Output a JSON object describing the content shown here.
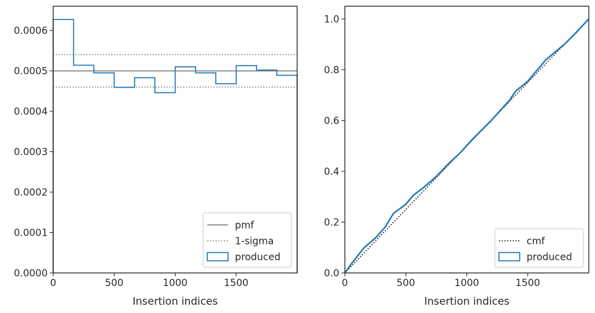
{
  "chart_data": [
    {
      "type": "histogram",
      "xlabel": "Insertion indices",
      "ylabel": "",
      "xlim": [
        0,
        2000
      ],
      "ylim": [
        0,
        0.00066
      ],
      "xticks": [
        0,
        500,
        1000,
        1500
      ],
      "yticks": [
        0,
        0.0001,
        0.0002,
        0.0003,
        0.0004,
        0.0005,
        0.0006
      ],
      "xtick_labels": [
        "0",
        "500",
        "1000",
        "1500"
      ],
      "ytick_labels": [
        "0.0000",
        "0.0001",
        "0.0002",
        "0.0003",
        "0.0004",
        "0.0005",
        "0.0006"
      ],
      "grid": false,
      "legend_position": "bottom-right",
      "legend": [
        "pmf",
        "1-sigma",
        "produced"
      ],
      "pmf": 0.0005,
      "sigma_band": [
        0.00046,
        0.00054
      ],
      "produced": {
        "bin_edges": [
          0,
          167,
          333,
          500,
          667,
          833,
          1000,
          1167,
          1333,
          1500,
          1667,
          1833,
          2000
        ],
        "values": [
          0.000627,
          0.000514,
          0.000495,
          0.000459,
          0.000483,
          0.000446,
          0.00051,
          0.000495,
          0.000468,
          0.000513,
          0.000502,
          0.000489
        ]
      },
      "colors": {
        "pmf": "#808080",
        "sigma": "#808080",
        "produced": "#1f77b4"
      }
    },
    {
      "type": "line",
      "xlabel": "Insertion indices",
      "ylabel": "",
      "xlim": [
        0,
        2000
      ],
      "ylim": [
        0,
        1.05
      ],
      "xticks": [
        0,
        500,
        1000,
        1500
      ],
      "yticks": [
        0,
        0.2,
        0.4,
        0.6,
        0.8,
        1.0
      ],
      "xtick_labels": [
        "0",
        "500",
        "1000",
        "1500"
      ],
      "ytick_labels": [
        "0.0",
        "0.2",
        "0.4",
        "0.6",
        "0.8",
        "1.0"
      ],
      "grid": false,
      "legend_position": "bottom-right",
      "legend": [
        "cmf",
        "produced"
      ],
      "cmf": {
        "x": [
          0,
          2000
        ],
        "y": [
          0,
          1
        ]
      },
      "produced": {
        "x": [
          0,
          60,
          160,
          250,
          330,
          400,
          500,
          560,
          650,
          750,
          850,
          950,
          1050,
          1200,
          1350,
          1400,
          1500,
          1650,
          1800,
          1900,
          2000
        ],
        "y": [
          0,
          0.04,
          0.1,
          0.137,
          0.18,
          0.235,
          0.27,
          0.305,
          0.338,
          0.38,
          0.43,
          0.475,
          0.528,
          0.6,
          0.68,
          0.715,
          0.755,
          0.84,
          0.9,
          0.948,
          1.0
        ]
      },
      "colors": {
        "cmf": "#000000",
        "produced": "#1f77b4"
      }
    }
  ]
}
